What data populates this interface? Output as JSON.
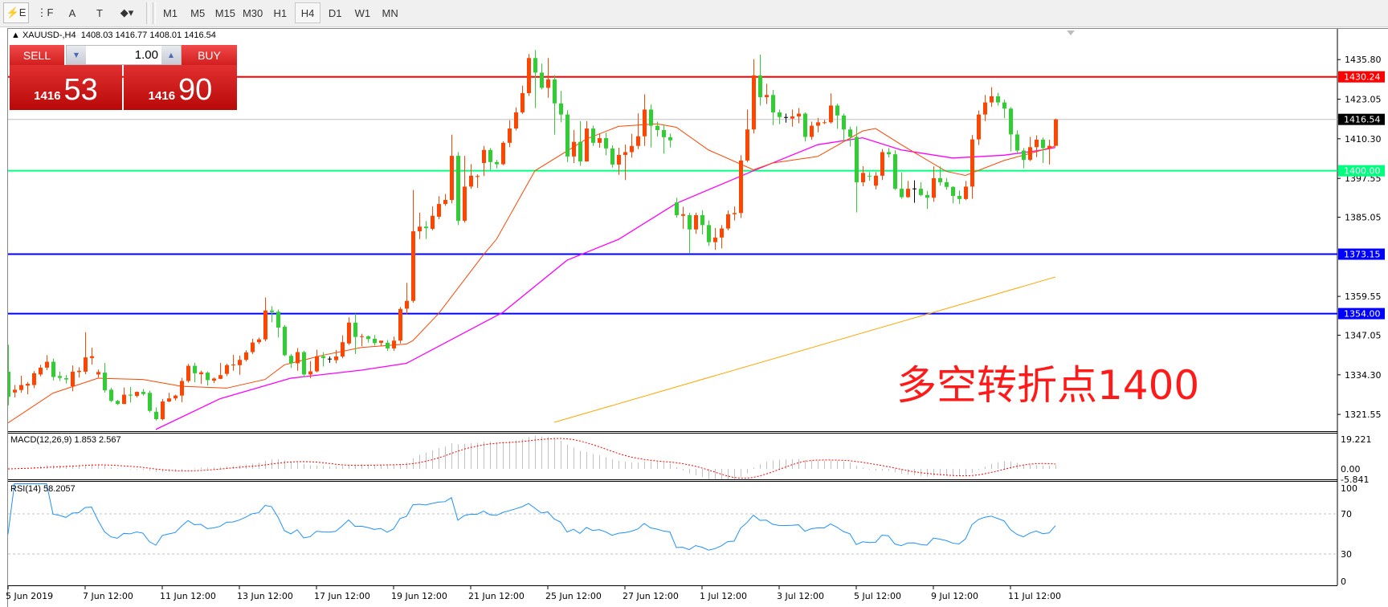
{
  "toolbar": {
    "tools": [
      {
        "name": "expert-chart-icon",
        "glyph": "⚡E"
      },
      {
        "name": "fibo-grid-icon",
        "glyph": "⋮F"
      },
      {
        "name": "text-a-icon",
        "glyph": "A"
      },
      {
        "name": "text-label-icon",
        "glyph": "T"
      },
      {
        "name": "shapes-dropdown-icon",
        "glyph": "◆▾"
      }
    ],
    "timeframes": [
      "M1",
      "M5",
      "M15",
      "M30",
      "H1",
      "H4",
      "D1",
      "W1",
      "MN"
    ],
    "active_timeframe": "H4"
  },
  "chart": {
    "symbol": "XAUUSD-,H4",
    "ohlc_text": "1408.03 1416.77 1408.01 1416.54",
    "colors": {
      "bull": "#ff4500",
      "bear": "#32cd32",
      "ma_fast": "#ff4500",
      "ma_mid": "#ff00ff",
      "ma_slow": "#ffa500",
      "rsi": "#1e90ff",
      "macd_hist": "#c0c0c0",
      "macd_signal": "#ff0000"
    }
  },
  "trade_panel": {
    "sell_label": "SELL",
    "buy_label": "BUY",
    "lot": "1.00",
    "sell_price_small": "1416",
    "sell_price_big": "53",
    "buy_price_small": "1416",
    "buy_price_big": "90"
  },
  "annotation": "多空转折点1400",
  "price_axis": {
    "ticks": [
      "1435.80",
      "1423.05",
      "1410.30",
      "1397.55",
      "1385.05",
      "1359.55",
      "1347.05",
      "1334.30",
      "1321.55"
    ],
    "levels": [
      {
        "price": "1430.24",
        "color": "#ff0000",
        "text_color": "#ffffff"
      },
      {
        "price": "1416.54",
        "color": "#000000",
        "text_color": "#ffffff",
        "line": "#c0c0c0"
      },
      {
        "price": "1400.00",
        "color": "#00ff7f",
        "text_color": "#ffffff"
      },
      {
        "price": "1373.15",
        "color": "#0000ff",
        "text_color": "#ffffff"
      },
      {
        "price": "1354.00",
        "color": "#0000ff",
        "text_color": "#ffffff"
      }
    ]
  },
  "macd": {
    "label": "MACD(12,26,9) 1.853 2.567",
    "ticks": [
      "19.221",
      "0.00",
      "-5.841"
    ]
  },
  "rsi": {
    "label": "RSI(14) 58.2057",
    "ticks": [
      "100",
      "70",
      "30",
      "0"
    ],
    "levels": [
      70,
      30
    ]
  },
  "time_axis": {
    "labels": [
      "5 Jun 2019",
      "7 Jun 12:00",
      "11 Jun 12:00",
      "13 Jun 12:00",
      "17 Jun 12:00",
      "19 Jun 12:00",
      "21 Jun 12:00",
      "25 Jun 12:00",
      "27 Jun 12:00",
      "1 Jul 12:00",
      "3 Jul 12:00",
      "5 Jul 12:00",
      "9 Jul 12:00",
      "11 Jul 12:00"
    ],
    "bars_per_label": 12
  },
  "chart_data": {
    "type": "candlestick",
    "ylim": [
      1316.1,
      1445.2
    ],
    "ohlc": [
      [
        1335.3,
        1344.0,
        1324.5,
        1327.2
      ],
      [
        1328.6,
        1331.0,
        1327.0,
        1329.5
      ],
      [
        1329.4,
        1334.0,
        1328.5,
        1331.0
      ],
      [
        1330.8,
        1332.0,
        1328.0,
        1331.4
      ],
      [
        1331.0,
        1335.5,
        1330.0,
        1334.8
      ],
      [
        1334.4,
        1337.5,
        1333.8,
        1336.6
      ],
      [
        1336.6,
        1340.6,
        1335.8,
        1338.5
      ],
      [
        1338.5,
        1339.5,
        1332.5,
        1333.6
      ],
      [
        1333.9,
        1335.3,
        1332.3,
        1333.3
      ],
      [
        1333.2,
        1334.2,
        1331.5,
        1332.8
      ],
      [
        1330.6,
        1337.3,
        1329.0,
        1335.3
      ],
      [
        1335.2,
        1336.7,
        1333.4,
        1335.6
      ],
      [
        1335.3,
        1348.0,
        1334.5,
        1339.9
      ],
      [
        1339.7,
        1343.0,
        1337.6,
        1340.3
      ],
      [
        1334.4,
        1336.0,
        1333.4,
        1335.2
      ],
      [
        1335.0,
        1338.1,
        1328.6,
        1329.3
      ],
      [
        1329.5,
        1330.1,
        1325.5,
        1325.9
      ],
      [
        1325.9,
        1326.2,
        1324.6,
        1324.9
      ],
      [
        1324.9,
        1330.2,
        1324.8,
        1327.9
      ],
      [
        1327.9,
        1330.4,
        1325.4,
        1327.6
      ],
      [
        1327.5,
        1328.9,
        1327.0,
        1328.8
      ],
      [
        1328.8,
        1329.7,
        1327.6,
        1328.1
      ],
      [
        1328.5,
        1329.2,
        1322.2,
        1322.7
      ],
      [
        1322.4,
        1323.8,
        1319.6,
        1320.0
      ],
      [
        1320.0,
        1326.5,
        1319.6,
        1325.7
      ],
      [
        1325.7,
        1328.5,
        1325.5,
        1326.7
      ],
      [
        1326.7,
        1327.9,
        1326.0,
        1327.6
      ],
      [
        1327.6,
        1333.3,
        1325.5,
        1332.3
      ],
      [
        1332.3,
        1337.8,
        1331.8,
        1337.2
      ],
      [
        1337.2,
        1338.2,
        1331.9,
        1334.8
      ],
      [
        1334.5,
        1335.6,
        1331.4,
        1335.1
      ],
      [
        1335.0,
        1335.4,
        1330.8,
        1332.6
      ],
      [
        1332.4,
        1333.4,
        1331.6,
        1333.1
      ],
      [
        1333.0,
        1338.1,
        1332.9,
        1334.2
      ],
      [
        1334.6,
        1337.9,
        1333.9,
        1337.4
      ],
      [
        1337.4,
        1340.7,
        1335.6,
        1337.6
      ],
      [
        1337.4,
        1340.5,
        1334.3,
        1339.1
      ],
      [
        1339.1,
        1342.2,
        1338.6,
        1341.5
      ],
      [
        1341.6,
        1345.9,
        1341.0,
        1344.7
      ],
      [
        1344.8,
        1346.3,
        1344.2,
        1345.7
      ],
      [
        1345.7,
        1359.2,
        1345.1,
        1355.0
      ],
      [
        1355.0,
        1356.4,
        1351.2,
        1354.5
      ],
      [
        1354.6,
        1355.3,
        1346.3,
        1349.5
      ],
      [
        1349.8,
        1350.3,
        1340.3,
        1340.6
      ],
      [
        1340.4,
        1341.0,
        1336.5,
        1338.0
      ],
      [
        1338.0,
        1342.9,
        1335.6,
        1341.6
      ],
      [
        1341.6,
        1342.0,
        1333.5,
        1334.4
      ],
      [
        1334.4,
        1338.7,
        1333.2,
        1335.4
      ],
      [
        1335.4,
        1342.4,
        1335.1,
        1340.3
      ],
      [
        1340.3,
        1341.6,
        1337.0,
        1339.7
      ],
      [
        1339.5,
        1340.2,
        1338.2,
        1339.5
      ],
      [
        1339.0,
        1342.3,
        1338.0,
        1340.2
      ],
      [
        1340.2,
        1347.0,
        1339.6,
        1344.8
      ],
      [
        1344.4,
        1352.8,
        1343.9,
        1351.1
      ],
      [
        1351.1,
        1354.0,
        1341.0,
        1346.5
      ],
      [
        1346.5,
        1347.5,
        1343.5,
        1346.7
      ],
      [
        1346.7,
        1346.9,
        1344.7,
        1345.8
      ],
      [
        1345.9,
        1347.1,
        1343.7,
        1344.5
      ],
      [
        1344.6,
        1345.2,
        1343.5,
        1345.3
      ],
      [
        1344.6,
        1345.5,
        1342.0,
        1342.8
      ],
      [
        1342.8,
        1346.6,
        1342.0,
        1345.3
      ],
      [
        1345.3,
        1356.1,
        1344.4,
        1355.5
      ],
      [
        1355.6,
        1363.9,
        1353.7,
        1358.1
      ],
      [
        1358.1,
        1393.8,
        1357.5,
        1380.5
      ],
      [
        1380.5,
        1386.5,
        1378.0,
        1382.0
      ],
      [
        1382.0,
        1383.8,
        1378.0,
        1381.5
      ],
      [
        1381.3,
        1388.5,
        1380.8,
        1385.5
      ],
      [
        1385.2,
        1391.8,
        1384.4,
        1389.3
      ],
      [
        1389.3,
        1392.5,
        1388.7,
        1390.6
      ],
      [
        1390.6,
        1411.6,
        1389.5,
        1404.8
      ],
      [
        1404.8,
        1406.0,
        1382.5,
        1383.9
      ],
      [
        1383.9,
        1404.8,
        1383.3,
        1394.9
      ],
      [
        1394.9,
        1402.1,
        1394.2,
        1398.4
      ],
      [
        1398.0,
        1398.8,
        1394.5,
        1398.3
      ],
      [
        1402.5,
        1408.0,
        1398.3,
        1406.7
      ],
      [
        1406.7,
        1407.3,
        1400.3,
        1402.8
      ],
      [
        1402.8,
        1403.5,
        1400.8,
        1402.1
      ],
      [
        1402.1,
        1409.5,
        1401.8,
        1409.0
      ],
      [
        1409.0,
        1416.3,
        1407.6,
        1413.6
      ],
      [
        1413.6,
        1420.4,
        1413.0,
        1418.8
      ],
      [
        1418.8,
        1427.4,
        1418.3,
        1425.0
      ],
      [
        1425.0,
        1437.6,
        1424.1,
        1436.3
      ],
      [
        1436.3,
        1438.9,
        1420.2,
        1431.6
      ],
      [
        1431.6,
        1434.5,
        1426.2,
        1426.7
      ],
      [
        1426.7,
        1436.3,
        1423.5,
        1429.4
      ],
      [
        1429.4,
        1430.8,
        1411.6,
        1421.7
      ],
      [
        1421.7,
        1425.7,
        1415.6,
        1418.1
      ],
      [
        1418.1,
        1419.5,
        1402.8,
        1404.6
      ],
      [
        1404.6,
        1413.1,
        1402.5,
        1409.3
      ],
      [
        1409.3,
        1416.0,
        1401.6,
        1403.0
      ],
      [
        1403.0,
        1416.0,
        1403.0,
        1413.6
      ],
      [
        1413.6,
        1414.5,
        1408.0,
        1409.0
      ],
      [
        1409.0,
        1412.0,
        1407.4,
        1410.5
      ],
      [
        1410.5,
        1412.3,
        1405.0,
        1407.2
      ],
      [
        1407.2,
        1408.2,
        1401.0,
        1402.0
      ],
      [
        1402.0,
        1407.4,
        1398.7,
        1405.1
      ],
      [
        1405.1,
        1408.4,
        1397.0,
        1406.0
      ],
      [
        1406.0,
        1411.9,
        1404.2,
        1408.0
      ],
      [
        1408.0,
        1418.5,
        1407.0,
        1411.1
      ],
      [
        1411.1,
        1424.6,
        1408.0,
        1419.7
      ],
      [
        1419.7,
        1421.3,
        1407.5,
        1414.5
      ],
      [
        1414.5,
        1415.8,
        1411.0,
        1413.1
      ],
      [
        1413.1,
        1414.6,
        1405.5,
        1410.8
      ],
      [
        1410.8,
        1412.0,
        1407.5,
        1409.8
      ],
      [
        1389.8,
        1391.3,
        1384.9,
        1385.7
      ],
      [
        1385.5,
        1388.4,
        1381.3,
        1386.0
      ],
      [
        1385.7,
        1386.5,
        1373.5,
        1381.1
      ],
      [
        1381.1,
        1386.5,
        1379.7,
        1385.7
      ],
      [
        1385.7,
        1387.3,
        1379.5,
        1382.5
      ],
      [
        1382.5,
        1384.0,
        1375.8,
        1377.0
      ],
      [
        1377.0,
        1381.6,
        1374.5,
        1378.5
      ],
      [
        1378.5,
        1382.5,
        1375.0,
        1381.4
      ],
      [
        1381.4,
        1387.2,
        1380.8,
        1386.0
      ],
      [
        1386.0,
        1388.5,
        1384.0,
        1386.4
      ],
      [
        1386.4,
        1405.0,
        1384.8,
        1403.3
      ],
      [
        1403.3,
        1419.7,
        1402.8,
        1413.3
      ],
      [
        1413.3,
        1435.9,
        1412.0,
        1430.7
      ],
      [
        1430.7,
        1437.4,
        1421.0,
        1423.7
      ],
      [
        1423.7,
        1428.0,
        1421.5,
        1424.4
      ],
      [
        1424.4,
        1426.0,
        1414.7,
        1418.8
      ],
      [
        1418.8,
        1419.7,
        1415.0,
        1417.3
      ],
      [
        1417.3,
        1418.4,
        1415.5,
        1417.2
      ],
      [
        1416.8,
        1419.7,
        1414.2,
        1417.5
      ],
      [
        1417.5,
        1420.2,
        1415.3,
        1418.4
      ],
      [
        1418.4,
        1418.8,
        1409.4,
        1410.9
      ],
      [
        1410.9,
        1415.8,
        1410.0,
        1414.5
      ],
      [
        1414.5,
        1417.0,
        1412.4,
        1415.6
      ],
      [
        1415.4,
        1416.4,
        1415.0,
        1415.6
      ],
      [
        1415.6,
        1424.9,
        1415.2,
        1421.0
      ],
      [
        1421.0,
        1421.6,
        1413.5,
        1417.8
      ],
      [
        1417.8,
        1418.4,
        1409.3,
        1413.3
      ],
      [
        1413.3,
        1414.2,
        1407.8,
        1410.9
      ],
      [
        1410.9,
        1414.3,
        1386.6,
        1396.3
      ],
      [
        1396.3,
        1401.5,
        1395.0,
        1399.3
      ],
      [
        1398.4,
        1399.6,
        1396.8,
        1398.2
      ],
      [
        1395.2,
        1399.6,
        1394.0,
        1398.4
      ],
      [
        1398.4,
        1407.0,
        1397.0,
        1406.0
      ],
      [
        1406.0,
        1407.3,
        1404.3,
        1405.3
      ],
      [
        1405.3,
        1406.6,
        1393.8,
        1394.2
      ],
      [
        1394.2,
        1399.5,
        1391.0,
        1391.5
      ],
      [
        1391.5,
        1396.7,
        1391.3,
        1394.2
      ],
      [
        1394.2,
        1396.9,
        1389.7,
        1394.3
      ],
      [
        1394.2,
        1396.3,
        1391.8,
        1392.2
      ],
      [
        1392.2,
        1393.5,
        1387.7,
        1391.3
      ],
      [
        1391.3,
        1401.4,
        1390.0,
        1397.6
      ],
      [
        1397.6,
        1401.4,
        1395.2,
        1396.3
      ],
      [
        1396.3,
        1397.7,
        1393.9,
        1394.8
      ],
      [
        1394.8,
        1395.0,
        1389.5,
        1391.9
      ],
      [
        1391.9,
        1393.6,
        1389.3,
        1390.9
      ],
      [
        1390.9,
        1396.7,
        1390.5,
        1394.9
      ],
      [
        1394.9,
        1411.5,
        1391.0,
        1410.1
      ],
      [
        1410.1,
        1419.4,
        1408.3,
        1418.1
      ],
      [
        1418.1,
        1424.4,
        1416.0,
        1422.0
      ],
      [
        1422.0,
        1426.9,
        1420.6,
        1424.0
      ],
      [
        1424.0,
        1425.1,
        1421.0,
        1422.0
      ],
      [
        1422.0,
        1422.9,
        1416.9,
        1420.0
      ],
      [
        1420.0,
        1420.5,
        1406.2,
        1411.7
      ],
      [
        1411.7,
        1413.0,
        1405.3,
        1406.5
      ],
      [
        1406.5,
        1407.3,
        1400.8,
        1403.5
      ],
      [
        1403.5,
        1410.9,
        1403.1,
        1407.6
      ],
      [
        1407.6,
        1411.4,
        1404.4,
        1410.0
      ],
      [
        1410.0,
        1410.7,
        1402.5,
        1407.3
      ],
      [
        1407.3,
        1410.0,
        1402.0,
        1408.03
      ],
      [
        1408.03,
        1416.77,
        1408.01,
        1416.54
      ]
    ],
    "ma_fast": [
      [
        0,
        1318.8
      ],
      [
        7,
        1328.4
      ],
      [
        14,
        1333.2
      ],
      [
        21,
        1332.8
      ],
      [
        27,
        1330.6
      ],
      [
        34,
        1330.0
      ],
      [
        40,
        1332.8
      ],
      [
        43,
        1337.5
      ],
      [
        49,
        1340.6
      ],
      [
        55,
        1343.1
      ],
      [
        62,
        1344.2
      ],
      [
        63,
        1345.3
      ],
      [
        67,
        1354.0
      ],
      [
        74,
        1373.0
      ],
      [
        76,
        1377.9
      ],
      [
        82,
        1400.0
      ],
      [
        90,
        1410.2
      ],
      [
        95,
        1414.3
      ],
      [
        101,
        1415.1
      ],
      [
        104,
        1414.0
      ],
      [
        109,
        1406.7
      ],
      [
        116,
        1400.3
      ],
      [
        119,
        1402.5
      ],
      [
        126,
        1404.6
      ],
      [
        133,
        1412.8
      ],
      [
        135,
        1413.6
      ],
      [
        139,
        1408.4
      ],
      [
        146,
        1399.8
      ],
      [
        149,
        1398.5
      ],
      [
        155,
        1403.3
      ],
      [
        161,
        1406.7
      ],
      [
        163,
        1408.0
      ]
    ],
    "ma_mid": [
      [
        23,
        1316.7
      ],
      [
        33,
        1326.6
      ],
      [
        44,
        1333.2
      ],
      [
        55,
        1335.8
      ],
      [
        62,
        1338.0
      ],
      [
        77,
        1354.4
      ],
      [
        87,
        1371.2
      ],
      [
        95,
        1377.9
      ],
      [
        104,
        1389.5
      ],
      [
        116,
        1400.0
      ],
      [
        126,
        1408.4
      ],
      [
        133,
        1410.6
      ],
      [
        139,
        1406.7
      ],
      [
        147,
        1404.1
      ],
      [
        155,
        1405.0
      ],
      [
        161,
        1406.7
      ],
      [
        163,
        1407.5
      ]
    ],
    "ma_slow": [
      [
        85,
        1319.0
      ],
      [
        163,
        1365.8
      ]
    ]
  }
}
